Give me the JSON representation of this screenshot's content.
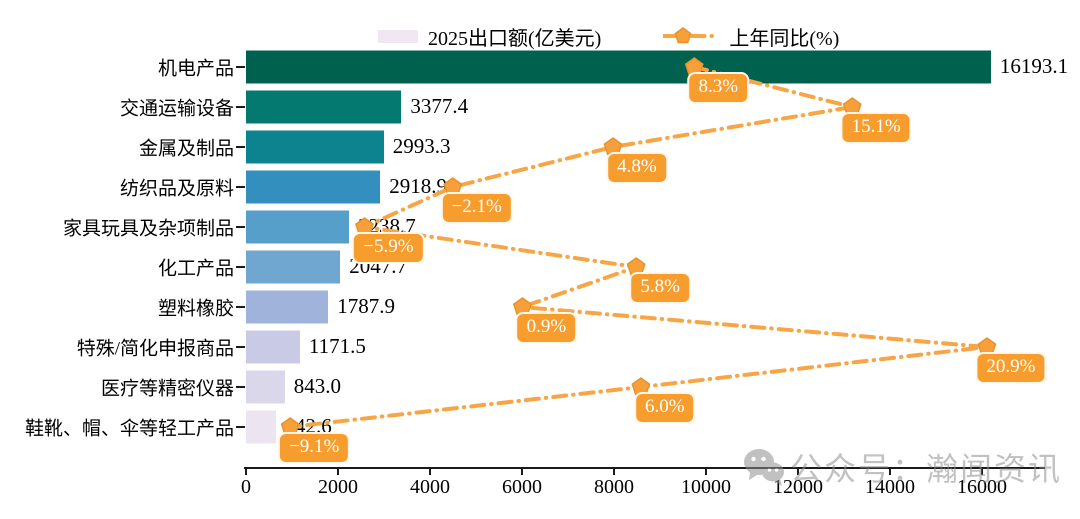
{
  "legend": {
    "bar_label": "2025出口额(亿美元)",
    "line_label": "上年同比(%)"
  },
  "watermark": {
    "icon": "wechat-icon",
    "text": "公众号：瀚闻资讯"
  },
  "colors": {
    "line": "#F7A545",
    "marker_fill": "#F7A03B",
    "marker_edge": "#E89327",
    "label_box_bg": "#F69D2D",
    "label_text": "#FFFFFF",
    "legend_swatch": "#F0E7F3",
    "axis": "#1A1A1A",
    "bar_palette": [
      "#00614F",
      "#03796F",
      "#0E8390",
      "#3390BE",
      "#579FCB",
      "#6FA7D1",
      "#9FB3DB",
      "#C9CAE5",
      "#DBD7EB",
      "#EDE4F2"
    ]
  },
  "chart_data": {
    "type": "bar",
    "orientation": "horizontal",
    "title": "",
    "xlabel": "",
    "ylabel": "",
    "grid": false,
    "legend_position": "top",
    "categories": [
      "机电产品",
      "交通运输设备",
      "金属及制品",
      "纺织品及原料",
      "家具玩具及杂项制品",
      "化工产品",
      "塑料橡胶",
      "特殊/简化申报商品",
      "医疗等精密仪器",
      "鞋靴、帽、伞等轻工产品"
    ],
    "series": [
      {
        "name": "2025出口额(亿美元)",
        "type": "bar",
        "values": [
          16193.1,
          3377.4,
          2993.3,
          2918.9,
          2238.7,
          2047.7,
          1787.9,
          1171.5,
          843.0,
          642.6
        ],
        "value_labels": [
          "16193.1",
          "3377.4",
          "2993.3",
          "2918.9",
          "2238.7",
          "2047.7",
          "1787.9",
          "1171.5",
          "843.0",
          "642.6"
        ]
      },
      {
        "name": "上年同比(%)",
        "type": "line",
        "style": "dash-dot",
        "marker": "pentagon",
        "values": [
          8.3,
          15.1,
          4.8,
          -2.1,
          -5.9,
          5.8,
          0.9,
          20.9,
          6.0,
          -9.1
        ],
        "value_labels": [
          "8.3%",
          "15.1%",
          "4.8%",
          "−2.1%",
          "−5.9%",
          "5.8%",
          "0.9%",
          "20.9%",
          "6.0%",
          "−9.1%"
        ]
      }
    ],
    "value_axis": {
      "ticks": [
        0,
        2000,
        4000,
        6000,
        8000,
        10000,
        12000,
        14000,
        16000
      ],
      "min": 0,
      "max": 16000
    },
    "pct_axis": {
      "min": -11,
      "max": 23.4
    }
  }
}
